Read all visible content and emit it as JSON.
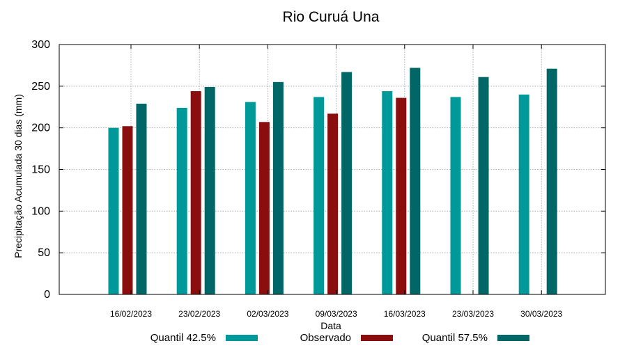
{
  "chart_data": {
    "type": "bar",
    "title": "Rio Curuá Una",
    "xlabel": "Data",
    "ylabel": "Precipitação Acumulada 30 dias (mm)",
    "ylim": [
      0,
      300
    ],
    "yticks": [
      0,
      50,
      100,
      150,
      200,
      250,
      300
    ],
    "grid": true,
    "legend_position": "bottom",
    "categories": [
      "16/02/2023",
      "23/02/2023",
      "02/03/2023",
      "09/03/2023",
      "16/03/2023",
      "23/03/2023",
      "30/03/2023"
    ],
    "series": [
      {
        "name": "Quantil 42.5%",
        "color": "#009999",
        "values": [
          200,
          224,
          231,
          237,
          244,
          237,
          240
        ]
      },
      {
        "name": "Observado",
        "color": "#8b0e0e",
        "values": [
          202,
          244,
          207,
          217,
          236,
          null,
          null
        ]
      },
      {
        "name": "Quantil 57.5%",
        "color": "#006666",
        "values": [
          229,
          249,
          255,
          267,
          272,
          261,
          271
        ]
      }
    ]
  }
}
